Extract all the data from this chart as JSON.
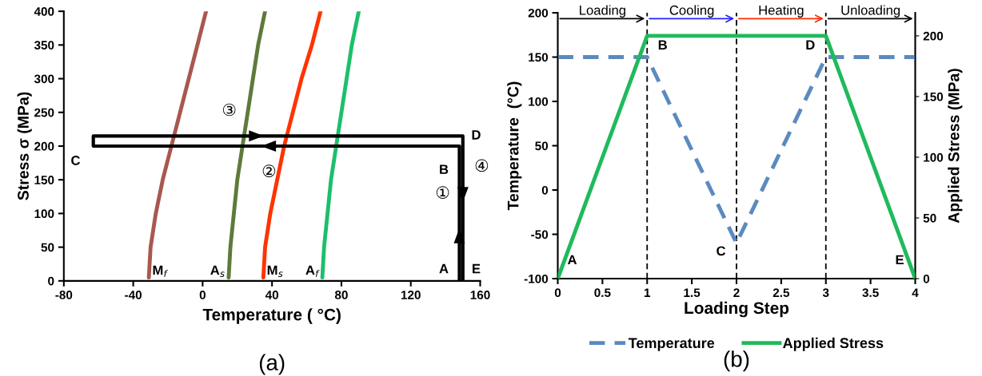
{
  "chart_data": [
    {
      "type": "line",
      "title": "(a)",
      "xlabel": "Temperature ( °C)",
      "ylabel": "Stress σ (MPa)",
      "xlim": [
        -80,
        160
      ],
      "xticks": [
        -80,
        -40,
        0,
        40,
        80,
        120,
        160
      ],
      "ylim": [
        0,
        400
      ],
      "yticks": [
        0,
        50,
        100,
        150,
        200,
        250,
        300,
        350,
        400
      ],
      "legend": false,
      "grid": false,
      "series": [
        {
          "name": "M$_{f}$",
          "color": "#a9574f",
          "x": [
            -31,
            -30,
            -27,
            -23,
            -18,
            -13,
            -8,
            -3,
            2
          ],
          "values": [
            5,
            50,
            100,
            150,
            200,
            250,
            300,
            350,
            400
          ]
        },
        {
          "name": "A$_{s}$",
          "color": "#5e7a3a",
          "x": [
            15,
            16,
            18,
            20,
            23,
            26,
            29,
            32,
            36
          ],
          "values": [
            5,
            50,
            100,
            150,
            200,
            250,
            300,
            350,
            400
          ]
        },
        {
          "name": "M$_{s}$",
          "color": "#ff3300",
          "x": [
            35,
            36,
            39,
            43,
            47,
            52,
            57,
            63,
            68
          ],
          "values": [
            5,
            50,
            100,
            150,
            200,
            250,
            300,
            350,
            400
          ]
        },
        {
          "name": "A$_{f}$",
          "color": "#1dbf6b",
          "x": [
            69,
            70,
            72,
            74,
            77,
            80,
            83,
            86,
            90
          ],
          "values": [
            5,
            50,
            100,
            150,
            200,
            250,
            300,
            350,
            400
          ]
        },
        {
          "color": "#000000",
          "x": [
            148,
            148,
            -63,
            -63,
            150,
            150
          ],
          "values": [
            0,
            200,
            200,
            215,
            215,
            0
          ]
        }
      ],
      "annotations": [
        {
          "text": "A",
          "x": 148,
          "y": 0
        },
        {
          "text": "B",
          "x": 148,
          "y": 200
        },
        {
          "text": "C",
          "x": -63,
          "y": 200
        },
        {
          "text": "D",
          "x": 150,
          "y": 215
        },
        {
          "text": "E",
          "x": 150,
          "y": 0
        },
        "①",
        "②",
        "③",
        "④"
      ]
    },
    {
      "type": "line",
      "title": "(b)",
      "xlabel": "Loading Step",
      "ylabel": "Temperature  (°C)",
      "y2label": "Applied Stress (MPa)",
      "xlim": [
        0,
        4
      ],
      "xticks": [
        0,
        0.5,
        1,
        1.5,
        2,
        2.5,
        3,
        3.5,
        4
      ],
      "ylim": [
        -100,
        200
      ],
      "yticks": [
        -100,
        -50,
        0,
        50,
        100,
        150,
        200
      ],
      "y2lim": [
        0,
        219
      ],
      "y2ticks": [
        0,
        50,
        100,
        150,
        200
      ],
      "legend": "bottom",
      "grid": false,
      "series": [
        {
          "name": "Temperature",
          "color": "#5b8ac0",
          "line_style": "dashed",
          "x": [
            0,
            1,
            2,
            3,
            4
          ],
          "values": [
            150,
            150,
            -60,
            150,
            150
          ]
        },
        {
          "name": "Applied Stress",
          "color": "#1fba5c",
          "line_style": "solid",
          "axis": "y2",
          "x": [
            0,
            1,
            2,
            3,
            4
          ],
          "values": [
            0,
            200,
            200,
            200,
            0
          ]
        }
      ],
      "ref_lines": [
        {
          "axis": "x",
          "value": 1,
          "color": "#000000",
          "line_style": "dashed"
        },
        {
          "axis": "x",
          "value": 2,
          "color": "#000000",
          "line_style": "dashed"
        },
        {
          "axis": "x",
          "value": 3,
          "color": "#000000",
          "line_style": "dashed"
        }
      ],
      "annotations": [
        "Loading",
        "Cooling",
        "Heating",
        "Unloading",
        {
          "text": "A",
          "x": 0,
          "y": -100
        },
        {
          "text": "B",
          "x": 1,
          "y": 150
        },
        {
          "text": "C",
          "x": 2,
          "y": -60
        },
        {
          "text": "D",
          "x": 3,
          "y": 150
        },
        {
          "text": "E",
          "x": 4,
          "y": -100
        }
      ]
    }
  ]
}
